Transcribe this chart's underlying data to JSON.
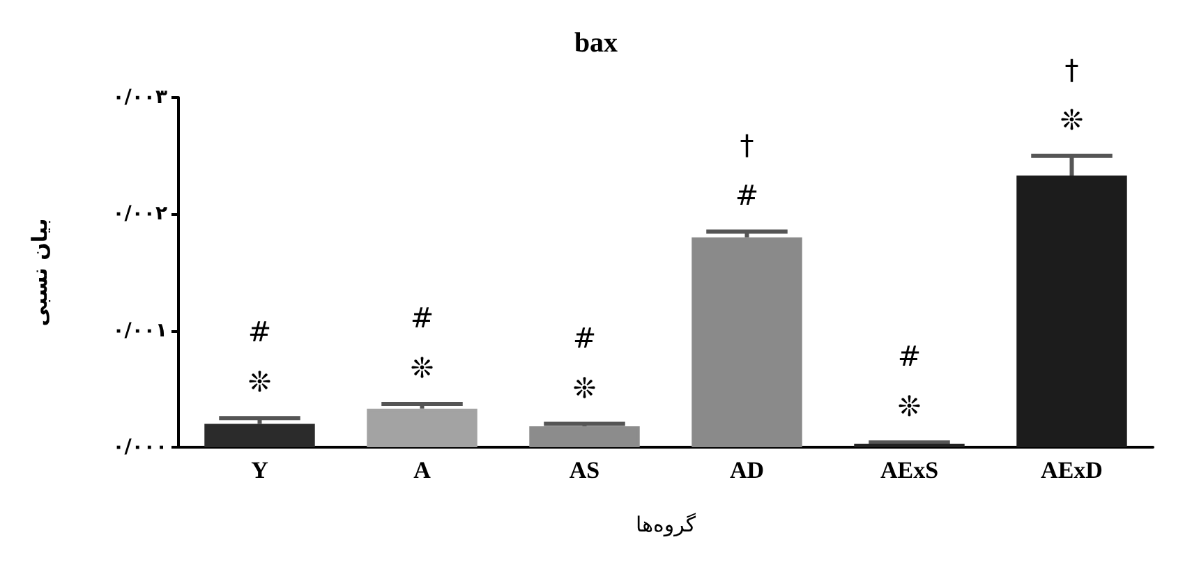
{
  "chart_data": {
    "type": "bar",
    "title": "bax",
    "xlabel": "گروه‌ها",
    "ylabel": "بیان نسبی",
    "categories": [
      "Y",
      "A",
      "AS",
      "AD",
      "AExS",
      "AExD"
    ],
    "values": [
      0.0002,
      0.00033,
      0.00018,
      0.0018,
      3e-05,
      0.00233
    ],
    "errors": [
      5e-05,
      4e-05,
      2e-05,
      5e-05,
      1e-05,
      0.00017
    ],
    "colors": [
      "#2b2b2b",
      "#a3a3a3",
      "#8c8c8c",
      "#8a8a8a",
      "#222222",
      "#1c1c1c"
    ],
    "ylim": [
      0,
      0.003
    ],
    "yticks": [
      {
        "value": 0,
        "label": "۰/۰۰۰"
      },
      {
        "value": 0.001,
        "label": "۰/۰۰۱"
      },
      {
        "value": 0.002,
        "label": "۰/۰۰۲"
      },
      {
        "value": 0.003,
        "label": "۰/۰۰۳"
      }
    ],
    "annotations": [
      "#\n❊",
      "#\n❊",
      "#\n❊",
      "†\n#",
      "#\n❊",
      "†\n❊"
    ],
    "grid": false
  }
}
